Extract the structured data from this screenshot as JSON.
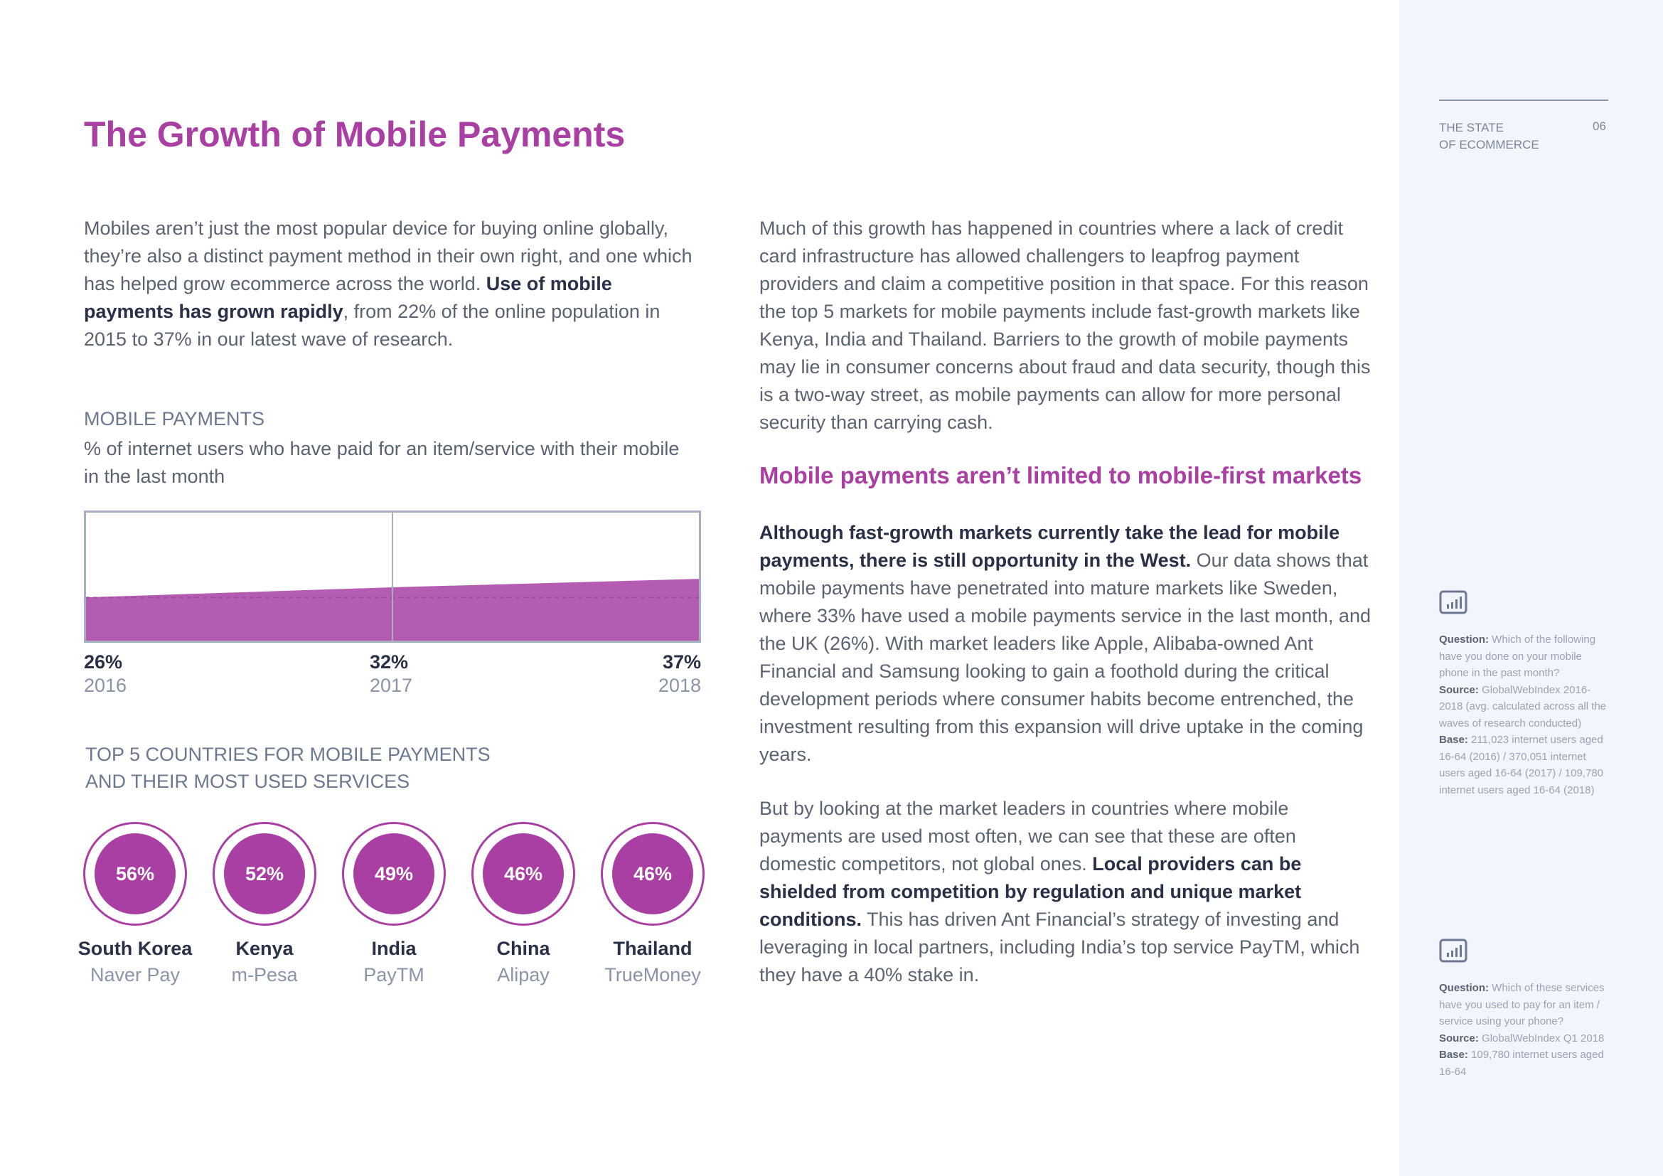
{
  "title": "The Growth of Mobile Payments",
  "intro": {
    "p1": "Mobiles aren’t just the most popular device for buying online globally, they’re also a distinct payment method in their own right, and one which has helped grow ecommerce across the world. ",
    "p1_bold": "Use of mobile payments has grown rapidly",
    "p1_end": ", from 22% of the online population in 2015 to 37% in our latest wave of research."
  },
  "chart_section": {
    "label": "MOBILE PAYMENTS",
    "subtitle": "% of internet users who have paid for an item/service with their mobile in the last month"
  },
  "chart_data": {
    "type": "area",
    "x": [
      "2016",
      "2017",
      "2018"
    ],
    "values": [
      26,
      32,
      37
    ],
    "value_labels": [
      "26%",
      "32%",
      "37%"
    ],
    "color": "#a93ea3"
  },
  "top5": {
    "heading_line1": "TOP 5 COUNTRIES FOR MOBILE PAYMENTS",
    "heading_line2": "AND THEIR MOST USED SERVICES",
    "countries": [
      {
        "pct": "56%",
        "name": "South Korea",
        "service": "Naver Pay"
      },
      {
        "pct": "52%",
        "name": "Kenya",
        "service": "m-Pesa"
      },
      {
        "pct": "49%",
        "name": "India",
        "service": "PayTM"
      },
      {
        "pct": "46%",
        "name": "China",
        "service": "Alipay"
      },
      {
        "pct": "46%",
        "name": "Thailand",
        "service": "TrueMoney"
      }
    ]
  },
  "right": {
    "p1": "Much of this growth has happened in countries where a lack of credit card infrastructure has allowed challengers to leapfrog payment providers and claim a competitive position in that space. For this reason the top 5 markets for mobile payments include fast-growth markets like Kenya, India and Thailand. Barriers to the growth of mobile payments may lie in consumer concerns about fraud and data security, though this is a two-way street, as mobile payments can allow for more personal security than carrying cash.",
    "heading": "Mobile payments aren’t limited to mobile-first markets",
    "p2_bold": "Although fast-growth markets currently take the lead for mobile payments, there is still opportunity in the West.",
    "p2": " Our data shows that mobile payments have penetrated into mature markets like Sweden, where 33% have used a mobile payments service in the last month, and the UK (26%). With market leaders like Apple, Alibaba-owned Ant Financial and Samsung looking to gain a foothold during the critical development periods where consumer habits become entrenched, the investment resulting from this expansion will drive uptake in the coming years.",
    "p3_start": "But by looking at the market leaders in countries where mobile payments are used most often, we can see that these are often domestic competitors, not global ones. ",
    "p3_bold": "Local providers can be shielded from competition by regulation and unique market conditions.",
    "p3_end": " This has driven Ant Financial’s strategy of investing and leveraging in local partners, including India’s top service PayTM, which they have a 40% stake in."
  },
  "sidebar": {
    "header_line1": "THE STATE",
    "header_line2": "OF ECOMMERCE",
    "page_number": "06",
    "note1": {
      "q_label": "Question:",
      "q": " Which of the following have you done on your mobile phone in the past month?",
      "s_label": "Source:",
      "s": " GlobalWebIndex 2016-2018 (avg. calculated across all the waves of research conducted)",
      "b_label": "Base:",
      "b": " 211,023 internet users aged 16-64 (2016) / 370,051 internet users aged 16-64 (2017) / 109,780 internet users aged 16-64 (2018)"
    },
    "note2": {
      "q_label": "Question:",
      "q": " Which of these services have you used to pay for an item / service using your phone?",
      "s_label": "Source:",
      "s": " GlobalWebIndex Q1 2018",
      "b_label": "Base:",
      "b": " 109,780 internet users aged 16-64"
    }
  }
}
